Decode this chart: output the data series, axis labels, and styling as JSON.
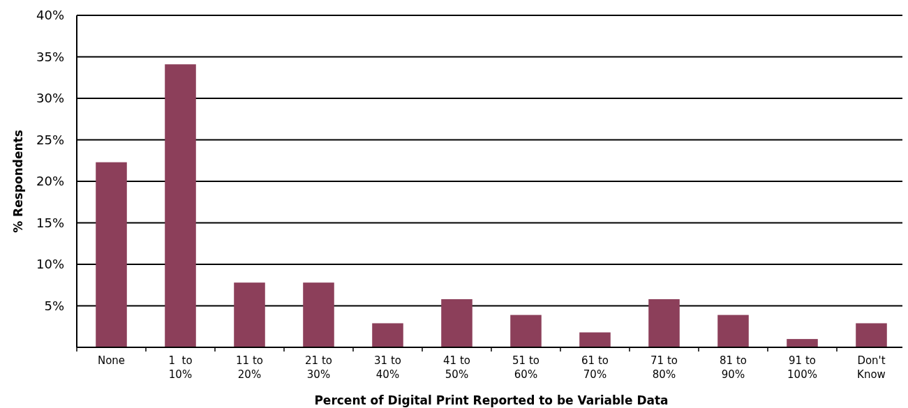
{
  "chart_data": {
    "type": "bar",
    "xlabel": "Percent of Digital Print Reported to be Variable Data",
    "ylabel": "% Respondents",
    "categories": [
      "None",
      "1  to\n10%",
      "11 to\n20%",
      "21 to\n30%",
      "31 to\n40%",
      "41 to\n50%",
      "51 to\n60%",
      "61 to\n70%",
      "71 to\n80%",
      "81 to\n90%",
      "91 to\n100%",
      "Don't\nKnow"
    ],
    "values": [
      22.3,
      34.1,
      7.8,
      7.8,
      2.9,
      5.8,
      3.9,
      1.8,
      5.8,
      3.9,
      1.0,
      2.9
    ],
    "color": "#8c3f5a",
    "ylim": [
      0,
      40
    ],
    "yticks": [
      {
        "value": 5,
        "label": "5%"
      },
      {
        "value": 10,
        "label": "10%"
      },
      {
        "value": 15,
        "label": "15%"
      },
      {
        "value": 20,
        "label": "20%"
      },
      {
        "value": 25,
        "label": "25%"
      },
      {
        "value": 30,
        "label": "30%"
      },
      {
        "value": 35,
        "label": "35%"
      },
      {
        "value": 40,
        "label": "40%"
      }
    ],
    "grid": "y"
  }
}
